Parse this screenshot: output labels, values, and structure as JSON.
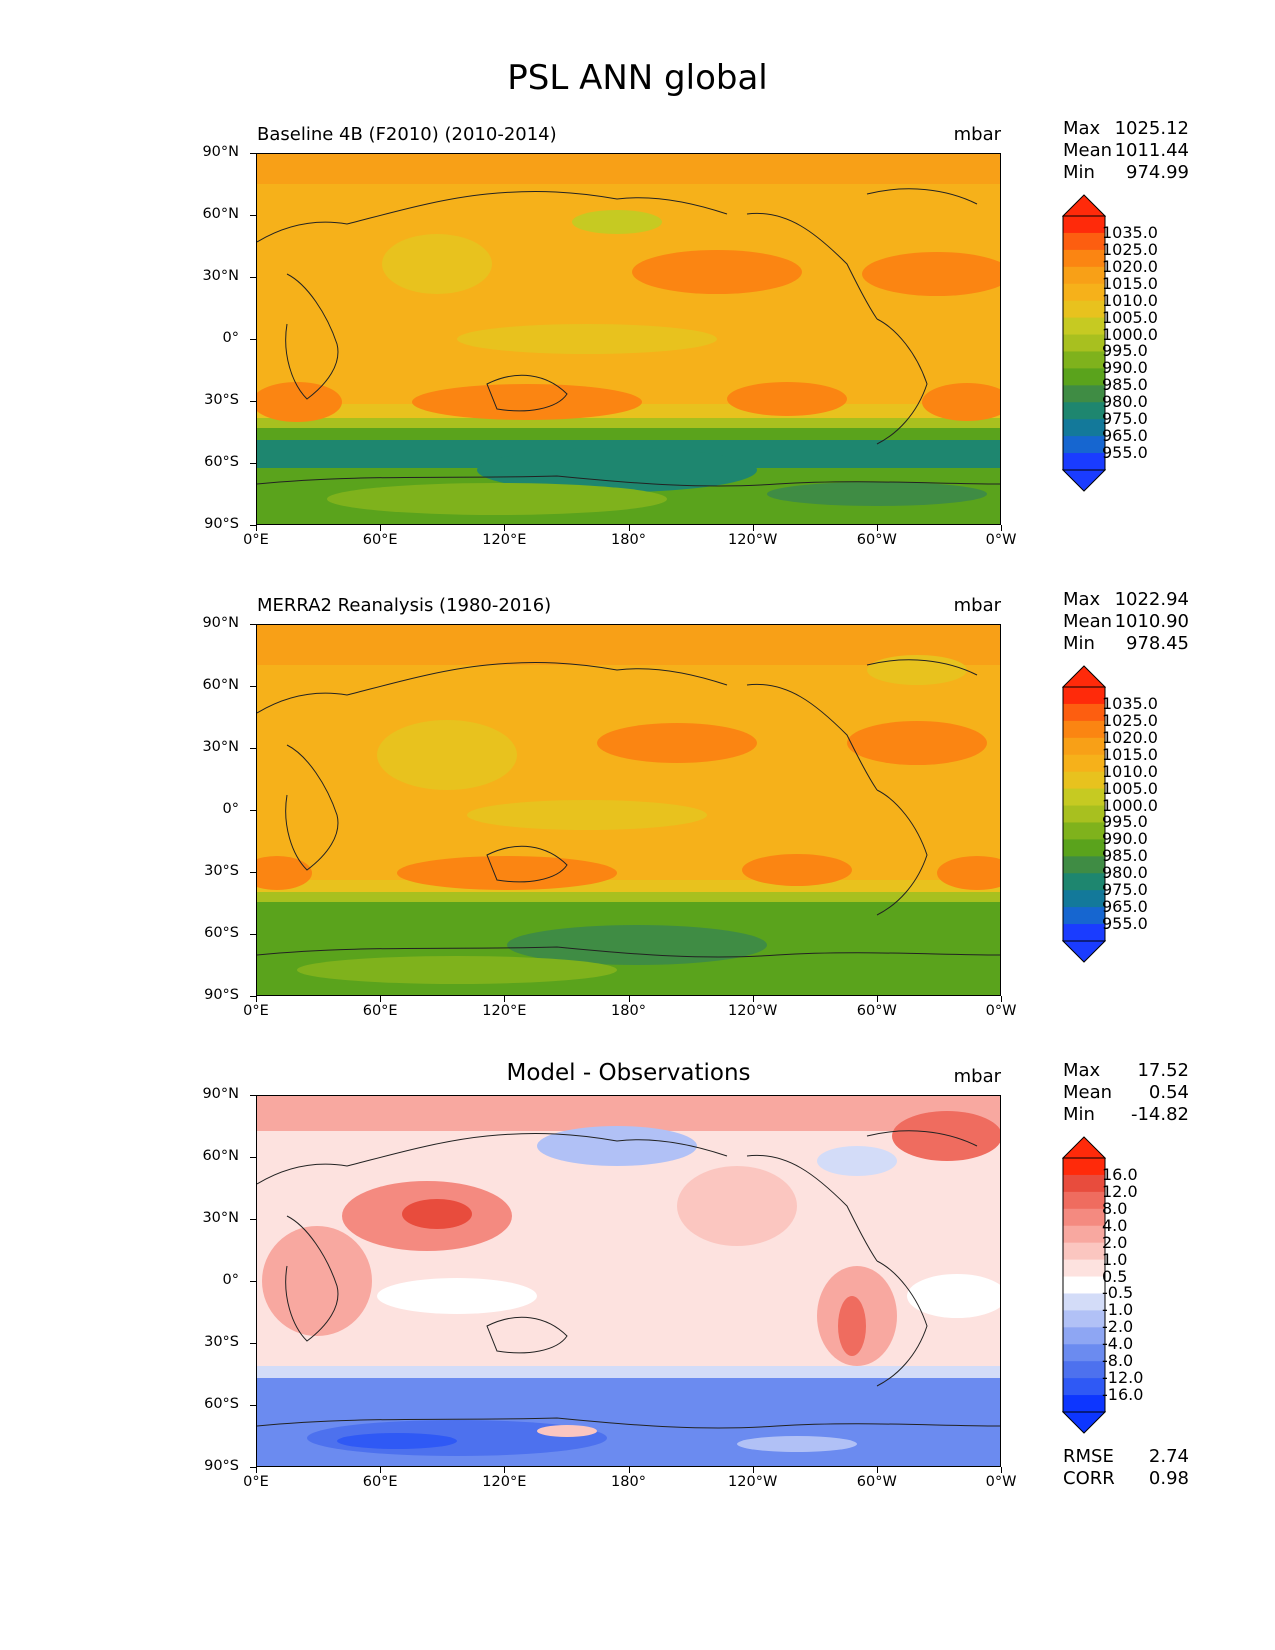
{
  "title": "PSL ANN global",
  "colors": {
    "abs_levels": [
      "#1a3cff",
      "#1666d0",
      "#13799a",
      "#1e866f",
      "#3f8c44",
      "#5aa31c",
      "#7fb21c",
      "#a8c01f",
      "#c6ca22",
      "#e8c21e",
      "#f6b11a",
      "#f8a017",
      "#fb8512",
      "#fd5e10",
      "#ff2a0a"
    ],
    "diff_levels": [
      "#0d36ff",
      "#2f59f5",
      "#4d71ee",
      "#6b8bf0",
      "#8ea6f3",
      "#b1c1f6",
      "#d3dcf8",
      "#ffffff",
      "#fde2df",
      "#fbc6c0",
      "#f8a8a0",
      "#f48a80",
      "#ef6c5f",
      "#e84c3d",
      "#ff2a0a"
    ]
  },
  "panels": [
    {
      "title": "Baseline 4B (F2010) (2010-2014)",
      "units": "mbar",
      "stats": {
        "max_label": "Max",
        "max": "1025.12",
        "mean_label": "Mean",
        "mean": "1011.44",
        "min_label": "Min",
        "min": "974.99"
      },
      "cbar_labels": [
        "1035.0",
        "1025.0",
        "1020.0",
        "1015.0",
        "1010.0",
        "1005.0",
        "1000.0",
        "995.0",
        "990.0",
        "985.0",
        "980.0",
        "975.0",
        "965.0",
        "955.0"
      ]
    },
    {
      "title": "MERRA2 Reanalysis (1980-2016)",
      "units": "mbar",
      "stats": {
        "max_label": "Max",
        "max": "1022.94",
        "mean_label": "Mean",
        "mean": "1010.90",
        "min_label": "Min",
        "min": "978.45"
      },
      "cbar_labels": [
        "1035.0",
        "1025.0",
        "1020.0",
        "1015.0",
        "1010.0",
        "1005.0",
        "1000.0",
        "995.0",
        "990.0",
        "985.0",
        "980.0",
        "975.0",
        "965.0",
        "955.0"
      ]
    },
    {
      "title": "Model - Observations",
      "units": "mbar",
      "stats": {
        "max_label": "Max",
        "max": "17.52",
        "mean_label": "Mean",
        "mean": "0.54",
        "min_label": "Min",
        "min": "-14.82"
      },
      "cbar_labels": [
        "16.0",
        "12.0",
        "8.0",
        "4.0",
        "2.0",
        "1.0",
        "0.5",
        "-0.5",
        "-1.0",
        "-2.0",
        "-4.0",
        "-8.0",
        "-12.0",
        "-16.0"
      ],
      "rmse_label": "RMSE",
      "rmse": "2.74",
      "corr_label": "CORR",
      "corr": "0.98"
    }
  ],
  "lat_labels": [
    "90°N",
    "60°N",
    "30°N",
    "0°",
    "30°S",
    "60°S",
    "90°S"
  ],
  "lon_labels": [
    "0°E",
    "60°E",
    "120°E",
    "180°",
    "120°W",
    "60°W",
    "0°W"
  ]
}
